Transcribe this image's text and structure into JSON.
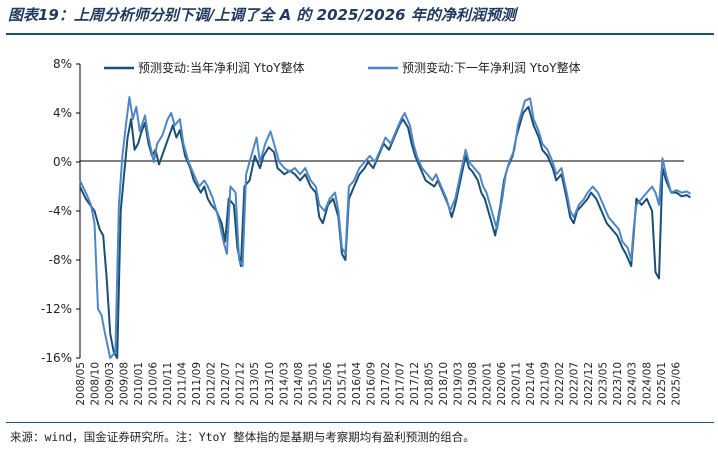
{
  "title": "图表19：上周分析师分别下调/上调了全 A 的 2025/2026 年的净利润预测",
  "source": "来源：wind，国金证券研究所。注：YtoY 整体指的是基期与考察期均有盈利预测的组合。",
  "colors": {
    "series1": "#1a4f72",
    "series2": "#4f86c6",
    "axis": "#000000"
  },
  "chart_data": {
    "type": "line",
    "title": "图表19：上周分析师分别下调/上调了全 A 的 2025/2026 年的净利润预测",
    "xlabel": "",
    "ylabel": "",
    "ylim": [
      -16,
      8
    ],
    "yticks": [
      "8%",
      "4%",
      "0%",
      "-4%",
      "-8%",
      "-12%",
      "-16%"
    ],
    "ytick_values": [
      8,
      4,
      0,
      -4,
      -8,
      -12,
      -16
    ],
    "xtick_labels": [
      "2008/05",
      "2008/10",
      "2009/03",
      "2009/08",
      "2010/01",
      "2010/06",
      "2010/11",
      "2011/04",
      "2011/09",
      "2012/02",
      "2012/07",
      "2012/12",
      "2013/05",
      "2013/10",
      "2014/03",
      "2014/08",
      "2015/01",
      "2015/06",
      "2015/11",
      "2016/04",
      "2016/09",
      "2017/02",
      "2017/07",
      "2017/12",
      "2018/05",
      "2018/10",
      "2019/03",
      "2019/08",
      "2020/01",
      "2020/06",
      "2020/11",
      "2021/04",
      "2021/09",
      "2022/02",
      "2022/07",
      "2022/12",
      "2023/05",
      "2023/10",
      "2024/03",
      "2024/08",
      "2025/01",
      "2025/06"
    ],
    "grid": false,
    "legend": "top",
    "series": [
      {
        "name": "预测变动:当年净利润 YtoY整体",
        "color": "#1a4f72",
        "points": [
          [
            2008.33,
            -2.0
          ],
          [
            2008.5,
            -3.0
          ],
          [
            2008.75,
            -4.0
          ],
          [
            2008.9,
            -5.5
          ],
          [
            2009.0,
            -6.0
          ],
          [
            2009.1,
            -9.5
          ],
          [
            2009.2,
            -14.0
          ],
          [
            2009.3,
            -15.5
          ],
          [
            2009.4,
            -16.0
          ],
          [
            2009.5,
            -4.0
          ],
          [
            2009.6,
            -1.0
          ],
          [
            2009.7,
            2.0
          ],
          [
            2009.8,
            3.5
          ],
          [
            2009.9,
            1.0
          ],
          [
            2010.0,
            1.5
          ],
          [
            2010.1,
            2.5
          ],
          [
            2010.2,
            3.2
          ],
          [
            2010.3,
            1.5
          ],
          [
            2010.4,
            0.5
          ],
          [
            2010.5,
            1.0
          ],
          [
            2010.6,
            -0.2
          ],
          [
            2010.75,
            1.0
          ],
          [
            2010.9,
            2.2
          ],
          [
            2011.0,
            3.0
          ],
          [
            2011.1,
            2.0
          ],
          [
            2011.2,
            2.6
          ],
          [
            2011.35,
            0.5
          ],
          [
            2011.5,
            -0.5
          ],
          [
            2011.6,
            -1.5
          ],
          [
            2011.8,
            -2.5
          ],
          [
            2011.9,
            -2.0
          ],
          [
            2012.0,
            -3.0
          ],
          [
            2012.1,
            -3.5
          ],
          [
            2012.25,
            -4.0
          ],
          [
            2012.4,
            -5.0
          ],
          [
            2012.5,
            -6.5
          ],
          [
            2012.6,
            -3.0
          ],
          [
            2012.75,
            -3.5
          ],
          [
            2012.85,
            -7.0
          ],
          [
            2012.95,
            -8.5
          ],
          [
            2013.05,
            -2.0
          ],
          [
            2013.2,
            -1.5
          ],
          [
            2013.35,
            0.5
          ],
          [
            2013.5,
            -0.5
          ],
          [
            2013.6,
            0.5
          ],
          [
            2013.75,
            1.2
          ],
          [
            2013.9,
            0.8
          ],
          [
            2014.0,
            -0.5
          ],
          [
            2014.2,
            -1.0
          ],
          [
            2014.35,
            -0.7
          ],
          [
            2014.5,
            -1.0
          ],
          [
            2014.65,
            -1.5
          ],
          [
            2014.8,
            -1.0
          ],
          [
            2014.95,
            -2.0
          ],
          [
            2015.1,
            -2.5
          ],
          [
            2015.2,
            -4.5
          ],
          [
            2015.3,
            -5.0
          ],
          [
            2015.45,
            -3.5
          ],
          [
            2015.6,
            -3.0
          ],
          [
            2015.75,
            -4.5
          ],
          [
            2015.85,
            -7.5
          ],
          [
            2015.95,
            -8.0
          ],
          [
            2016.05,
            -3.0
          ],
          [
            2016.2,
            -2.0
          ],
          [
            2016.35,
            -1.0
          ],
          [
            2016.5,
            -0.5
          ],
          [
            2016.6,
            0.0
          ],
          [
            2016.75,
            -0.5
          ],
          [
            2016.9,
            0.5
          ],
          [
            2017.05,
            1.5
          ],
          [
            2017.2,
            1.0
          ],
          [
            2017.35,
            2.0
          ],
          [
            2017.5,
            3.0
          ],
          [
            2017.6,
            3.5
          ],
          [
            2017.75,
            2.8
          ],
          [
            2017.85,
            1.5
          ],
          [
            2017.95,
            0.5
          ],
          [
            2018.1,
            -0.5
          ],
          [
            2018.25,
            -1.5
          ],
          [
            2018.4,
            -1.8
          ],
          [
            2018.5,
            -2.0
          ],
          [
            2018.6,
            -1.5
          ],
          [
            2018.75,
            -2.5
          ],
          [
            2018.9,
            -3.5
          ],
          [
            2019.0,
            -4.5
          ],
          [
            2019.1,
            -3.5
          ],
          [
            2019.25,
            -1.5
          ],
          [
            2019.4,
            0.5
          ],
          [
            2019.5,
            -0.5
          ],
          [
            2019.6,
            -0.8
          ],
          [
            2019.75,
            -1.5
          ],
          [
            2019.85,
            -2.5
          ],
          [
            2019.95,
            -3.0
          ],
          [
            2020.05,
            -4.0
          ],
          [
            2020.15,
            -5.0
          ],
          [
            2020.25,
            -6.0
          ],
          [
            2020.4,
            -3.5
          ],
          [
            2020.5,
            -1.5
          ],
          [
            2020.6,
            -0.5
          ],
          [
            2020.75,
            0.5
          ],
          [
            2020.85,
            2.0
          ],
          [
            2020.95,
            3.0
          ],
          [
            2021.05,
            4.0
          ],
          [
            2021.2,
            4.5
          ],
          [
            2021.35,
            3.0
          ],
          [
            2021.5,
            2.0
          ],
          [
            2021.6,
            1.0
          ],
          [
            2021.75,
            0.5
          ],
          [
            2021.9,
            -0.5
          ],
          [
            2022.0,
            -1.5
          ],
          [
            2022.15,
            -1.0
          ],
          [
            2022.3,
            -3.0
          ],
          [
            2022.4,
            -4.5
          ],
          [
            2022.5,
            -5.0
          ],
          [
            2022.6,
            -4.0
          ],
          [
            2022.75,
            -3.5
          ],
          [
            2022.9,
            -3.0
          ],
          [
            2023.0,
            -2.5
          ],
          [
            2023.15,
            -3.0
          ],
          [
            2023.3,
            -4.0
          ],
          [
            2023.45,
            -5.0
          ],
          [
            2023.6,
            -5.5
          ],
          [
            2023.75,
            -6.0
          ],
          [
            2023.9,
            -7.0
          ],
          [
            2024.0,
            -7.5
          ],
          [
            2024.15,
            -8.5
          ],
          [
            2024.22,
            -6.0
          ],
          [
            2024.3,
            -3.0
          ],
          [
            2024.45,
            -3.5
          ],
          [
            2024.6,
            -3.0
          ],
          [
            2024.75,
            -4.0
          ],
          [
            2024.85,
            -9.0
          ],
          [
            2024.95,
            -9.5
          ],
          [
            2025.05,
            -0.5
          ],
          [
            2025.15,
            -1.5
          ],
          [
            2025.3,
            -2.5
          ],
          [
            2025.45,
            -2.5
          ],
          [
            2025.6,
            -2.8
          ],
          [
            2025.75,
            -2.7
          ],
          [
            2025.85,
            -2.9
          ]
        ]
      },
      {
        "name": "预测变动:下一年净利润 YtoY整体",
        "color": "#4f86c6",
        "points": [
          [
            2008.33,
            -1.5
          ],
          [
            2008.5,
            -2.5
          ],
          [
            2008.65,
            -3.5
          ],
          [
            2008.75,
            -5.0
          ],
          [
            2008.85,
            -12.0
          ],
          [
            2008.95,
            -12.5
          ],
          [
            2009.05,
            -14.0
          ],
          [
            2009.2,
            -16.0
          ],
          [
            2009.35,
            -15.5
          ],
          [
            2009.45,
            -3.5
          ],
          [
            2009.55,
            0.5
          ],
          [
            2009.65,
            3.0
          ],
          [
            2009.75,
            5.3
          ],
          [
            2009.85,
            3.5
          ],
          [
            2009.95,
            4.5
          ],
          [
            2010.05,
            2.5
          ],
          [
            2010.2,
            3.8
          ],
          [
            2010.3,
            2.0
          ],
          [
            2010.45,
            0.0
          ],
          [
            2010.55,
            1.5
          ],
          [
            2010.7,
            2.2
          ],
          [
            2010.85,
            3.5
          ],
          [
            2010.95,
            4.0
          ],
          [
            2011.05,
            3.0
          ],
          [
            2011.2,
            3.5
          ],
          [
            2011.3,
            1.5
          ],
          [
            2011.45,
            0.0
          ],
          [
            2011.6,
            -1.0
          ],
          [
            2011.75,
            -2.0
          ],
          [
            2011.9,
            -1.5
          ],
          [
            2012.0,
            -2.0
          ],
          [
            2012.15,
            -3.0
          ],
          [
            2012.3,
            -4.5
          ],
          [
            2012.45,
            -6.5
          ],
          [
            2012.55,
            -7.5
          ],
          [
            2012.65,
            -2.0
          ],
          [
            2012.8,
            -2.5
          ],
          [
            2012.9,
            -8.0
          ],
          [
            2013.0,
            -8.5
          ],
          [
            2013.1,
            -1.0
          ],
          [
            2013.25,
            0.5
          ],
          [
            2013.4,
            2.0
          ],
          [
            2013.5,
            0.0
          ],
          [
            2013.65,
            1.5
          ],
          [
            2013.8,
            2.5
          ],
          [
            2013.9,
            1.5
          ],
          [
            2014.05,
            0.0
          ],
          [
            2014.2,
            -0.5
          ],
          [
            2014.35,
            -0.8
          ],
          [
            2014.5,
            -0.5
          ],
          [
            2014.65,
            -1.0
          ],
          [
            2014.8,
            -0.5
          ],
          [
            2014.95,
            -1.5
          ],
          [
            2015.1,
            -2.0
          ],
          [
            2015.2,
            -3.5
          ],
          [
            2015.35,
            -4.0
          ],
          [
            2015.5,
            -3.0
          ],
          [
            2015.65,
            -2.5
          ],
          [
            2015.75,
            -4.0
          ],
          [
            2015.85,
            -7.0
          ],
          [
            2015.95,
            -7.5
          ],
          [
            2016.05,
            -2.0
          ],
          [
            2016.2,
            -1.5
          ],
          [
            2016.35,
            -0.5
          ],
          [
            2016.5,
            0.0
          ],
          [
            2016.65,
            0.5
          ],
          [
            2016.8,
            0.0
          ],
          [
            2016.95,
            1.0
          ],
          [
            2017.1,
            2.0
          ],
          [
            2017.25,
            1.5
          ],
          [
            2017.4,
            2.5
          ],
          [
            2017.55,
            3.5
          ],
          [
            2017.65,
            4.0
          ],
          [
            2017.8,
            3.0
          ],
          [
            2017.9,
            1.5
          ],
          [
            2018.0,
            0.5
          ],
          [
            2018.15,
            -0.5
          ],
          [
            2018.3,
            -1.0
          ],
          [
            2018.45,
            -1.5
          ],
          [
            2018.55,
            -1.0
          ],
          [
            2018.7,
            -2.0
          ],
          [
            2018.85,
            -3.0
          ],
          [
            2018.95,
            -4.0
          ],
          [
            2019.1,
            -3.0
          ],
          [
            2019.25,
            -1.0
          ],
          [
            2019.4,
            1.0
          ],
          [
            2019.5,
            0.0
          ],
          [
            2019.65,
            -0.5
          ],
          [
            2019.8,
            -1.0
          ],
          [
            2019.9,
            -2.0
          ],
          [
            2020.0,
            -2.5
          ],
          [
            2020.1,
            -3.5
          ],
          [
            2020.2,
            -4.5
          ],
          [
            2020.3,
            -5.5
          ],
          [
            2020.45,
            -3.0
          ],
          [
            2020.55,
            -1.0
          ],
          [
            2020.65,
            0.0
          ],
          [
            2020.8,
            1.0
          ],
          [
            2020.9,
            3.0
          ],
          [
            2021.0,
            4.0
          ],
          [
            2021.1,
            5.0
          ],
          [
            2021.25,
            5.2
          ],
          [
            2021.35,
            3.5
          ],
          [
            2021.5,
            2.5
          ],
          [
            2021.6,
            1.5
          ],
          [
            2021.75,
            1.0
          ],
          [
            2021.9,
            0.0
          ],
          [
            2022.0,
            -1.0
          ],
          [
            2022.15,
            -0.5
          ],
          [
            2022.3,
            -2.5
          ],
          [
            2022.4,
            -4.0
          ],
          [
            2022.5,
            -4.5
          ],
          [
            2022.65,
            -3.5
          ],
          [
            2022.8,
            -3.0
          ],
          [
            2022.9,
            -2.5
          ],
          [
            2023.05,
            -2.0
          ],
          [
            2023.2,
            -2.5
          ],
          [
            2023.35,
            -3.5
          ],
          [
            2023.5,
            -4.5
          ],
          [
            2023.65,
            -5.0
          ],
          [
            2023.8,
            -5.5
          ],
          [
            2023.9,
            -6.5
          ],
          [
            2024.05,
            -7.0
          ],
          [
            2024.15,
            -8.0
          ],
          [
            2024.22,
            -5.5
          ],
          [
            2024.3,
            -3.5
          ],
          [
            2024.45,
            -3.0
          ],
          [
            2024.6,
            -2.5
          ],
          [
            2024.75,
            -2.0
          ],
          [
            2024.85,
            -2.5
          ],
          [
            2024.95,
            -3.5
          ],
          [
            2025.05,
            0.3
          ],
          [
            2025.15,
            -1.0
          ],
          [
            2025.3,
            -2.5
          ],
          [
            2025.45,
            -2.3
          ],
          [
            2025.6,
            -2.5
          ],
          [
            2025.75,
            -2.4
          ],
          [
            2025.85,
            -2.6
          ]
        ]
      }
    ]
  }
}
